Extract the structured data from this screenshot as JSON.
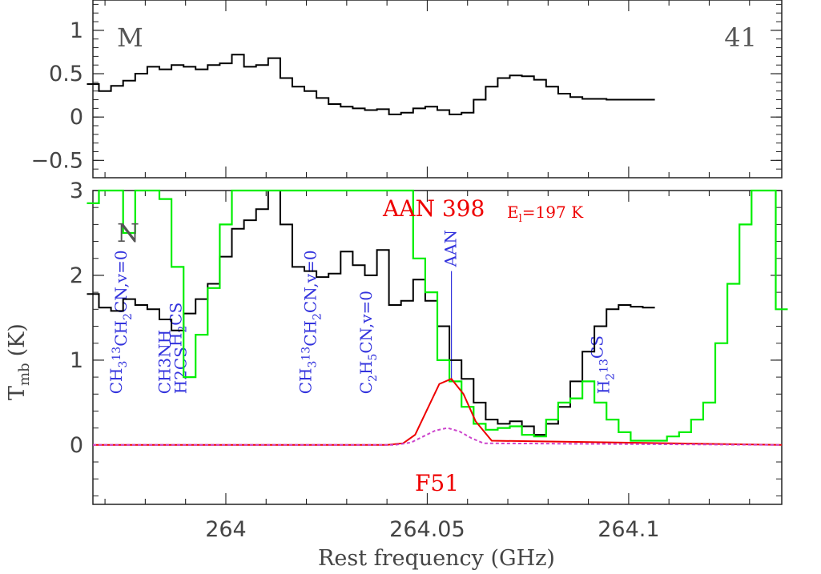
{
  "chart_data": [
    {
      "type": "line",
      "panel_label": "M",
      "panel_number": "41",
      "xlim": [
        263.967,
        264.138
      ],
      "ylim": [
        -0.7,
        1.35
      ],
      "yticks": [
        {
          "v": 1,
          "label": "1"
        },
        {
          "v": 0.5,
          "label": "0.5"
        },
        {
          "v": 0,
          "label": "0"
        },
        {
          "v": -0.5,
          "label": "−0.5"
        }
      ],
      "series": [
        {
          "color": "#000000",
          "x": [
            263.967,
            263.97,
            263.973,
            263.976,
            263.979,
            263.982,
            263.985,
            263.988,
            263.991,
            263.994,
            263.997,
            264.0,
            264.003,
            264.006,
            264.009,
            264.012,
            264.015,
            264.018,
            264.021,
            264.024,
            264.027,
            264.03,
            264.033,
            264.036,
            264.039,
            264.042,
            264.045,
            264.048,
            264.051,
            264.054,
            264.057,
            264.06,
            264.063,
            264.066,
            264.069,
            264.072,
            264.075,
            264.078,
            264.081,
            264.084,
            264.087,
            264.09,
            264.093,
            264.096,
            264.099,
            264.102,
            264.105
          ],
          "y": [
            0.38,
            0.3,
            0.36,
            0.42,
            0.5,
            0.58,
            0.55,
            0.6,
            0.58,
            0.55,
            0.6,
            0.62,
            0.72,
            0.58,
            0.6,
            0.68,
            0.45,
            0.35,
            0.3,
            0.22,
            0.15,
            0.12,
            0.1,
            0.08,
            0.09,
            0.03,
            0.05,
            0.1,
            0.12,
            0.08,
            0.03,
            0.05,
            0.2,
            0.35,
            0.45,
            0.48,
            0.47,
            0.43,
            0.35,
            0.27,
            0.23,
            0.21,
            0.21,
            0.2,
            0.2,
            0.2,
            0.2
          ]
        }
      ]
    },
    {
      "type": "line",
      "panel_label": "N",
      "title": "AAN 398",
      "energy_label": "E",
      "energy_sub": "l",
      "energy_value": "=197 K",
      "footer_label": "F51",
      "xlim": [
        263.967,
        264.138
      ],
      "ylim": [
        -0.7,
        3.0
      ],
      "xlabel": "Rest frequency (GHz)",
      "ylabel": "T",
      "ylabel_sub": "mb",
      "ylabel_unit": "(K)",
      "xticks": [
        {
          "v": 264.0,
          "label": "264"
        },
        {
          "v": 264.05,
          "label": "264.05"
        },
        {
          "v": 264.1,
          "label": "264.1"
        }
      ],
      "yticks": [
        {
          "v": 3,
          "label": "3"
        },
        {
          "v": 2,
          "label": "2"
        },
        {
          "v": 1,
          "label": "1"
        },
        {
          "v": 0,
          "label": "0"
        }
      ],
      "series": [
        {
          "color": "#000000",
          "x": [
            263.967,
            263.97,
            263.973,
            263.976,
            263.979,
            263.982,
            263.985,
            263.988,
            263.991,
            263.994,
            263.997,
            264.0,
            264.003,
            264.006,
            264.009,
            264.012,
            264.015,
            264.018,
            264.021,
            264.024,
            264.027,
            264.03,
            264.033,
            264.036,
            264.039,
            264.042,
            264.045,
            264.048,
            264.051,
            264.054,
            264.057,
            264.06,
            264.063,
            264.066,
            264.069,
            264.072,
            264.075,
            264.078,
            264.081,
            264.084,
            264.087,
            264.09,
            264.093,
            264.096,
            264.099,
            264.102,
            264.105
          ],
          "y": [
            1.78,
            1.62,
            1.58,
            1.72,
            1.65,
            1.6,
            1.48,
            1.35,
            1.55,
            1.72,
            1.9,
            2.22,
            2.55,
            2.65,
            2.78,
            3.0,
            2.6,
            2.1,
            2.05,
            1.98,
            2.02,
            2.28,
            2.12,
            2.0,
            2.3,
            1.65,
            1.7,
            1.95,
            1.7,
            1.4,
            1.0,
            0.78,
            0.5,
            0.3,
            0.25,
            0.28,
            0.22,
            0.12,
            0.25,
            0.45,
            0.75,
            1.1,
            1.4,
            1.6,
            1.65,
            1.63,
            1.62
          ]
        },
        {
          "color": "#00ee00",
          "x": [
            263.967,
            263.97,
            263.973,
            263.976,
            263.979,
            263.982,
            263.985,
            263.988,
            263.991,
            263.994,
            263.997,
            264.0,
            264.003,
            264.006,
            264.009,
            264.012,
            264.015,
            264.018,
            264.021,
            264.024,
            264.027,
            264.03,
            264.033,
            264.036,
            264.039,
            264.042,
            264.045,
            264.048,
            264.051,
            264.054,
            264.057,
            264.06,
            264.063,
            264.066,
            264.069,
            264.072,
            264.075,
            264.078,
            264.081,
            264.084,
            264.087,
            264.09,
            264.093,
            264.096,
            264.099,
            264.102,
            264.105,
            264.108,
            264.111,
            264.114,
            264.117,
            264.12,
            264.123,
            264.126,
            264.129,
            264.132,
            264.135,
            264.138
          ],
          "y": [
            2.85,
            3.0,
            3.0,
            2.5,
            3.0,
            3.0,
            2.9,
            2.1,
            0.8,
            1.3,
            1.85,
            2.6,
            3.0,
            3.0,
            3.0,
            3.0,
            3.0,
            3.0,
            3.0,
            3.0,
            3.0,
            3.0,
            3.0,
            3.0,
            3.0,
            3.0,
            3.0,
            2.2,
            1.8,
            1.0,
            0.75,
            0.45,
            0.25,
            0.18,
            0.2,
            0.22,
            0.12,
            0.1,
            0.3,
            0.5,
            0.55,
            0.75,
            0.5,
            0.3,
            0.15,
            0.05,
            0.05,
            0.05,
            0.1,
            0.15,
            0.3,
            0.5,
            1.2,
            1.9,
            2.6,
            3.0,
            3.0,
            1.6
          ]
        },
        {
          "color": "#ee0000",
          "x": [
            263.967,
            264.04,
            264.044,
            264.047,
            264.05,
            264.053,
            264.056,
            264.059,
            264.062,
            264.066,
            264.138
          ],
          "y": [
            0.0,
            0.0,
            0.02,
            0.12,
            0.42,
            0.72,
            0.78,
            0.6,
            0.28,
            0.05,
            0.0
          ]
        },
        {
          "color": "#cc44cc",
          "dashed": true,
          "x": [
            263.967,
            264.042,
            264.046,
            264.049,
            264.052,
            264.055,
            264.058,
            264.061,
            264.064,
            264.138
          ],
          "y": [
            0.0,
            0.0,
            0.03,
            0.1,
            0.17,
            0.2,
            0.16,
            0.08,
            0.02,
            0.0
          ]
        }
      ],
      "annotations": [
        {
          "x": 263.973,
          "label_main": "CH",
          "parts": [
            "3",
            "13",
            "CH",
            "2",
            "CN,v=0"
          ]
        },
        {
          "x": 263.985,
          "label_main": "CH3NH"
        },
        {
          "x": 263.989,
          "label_main": "H2CS",
          "parts": [
            "H",
            "2",
            "CS"
          ]
        },
        {
          "x": 264.02,
          "label_main": "CH",
          "parts": [
            "3",
            "13",
            "CH",
            "2",
            "CN,v=0"
          ]
        },
        {
          "x": 264.035,
          "label_main": "C",
          "parts": [
            "2",
            "H",
            "5",
            "CN,v=0"
          ]
        },
        {
          "x": 264.056,
          "label_main": "AAN"
        },
        {
          "x": 264.094,
          "label_main": "H",
          "parts": [
            "2",
            "13",
            "CS"
          ]
        }
      ]
    }
  ]
}
